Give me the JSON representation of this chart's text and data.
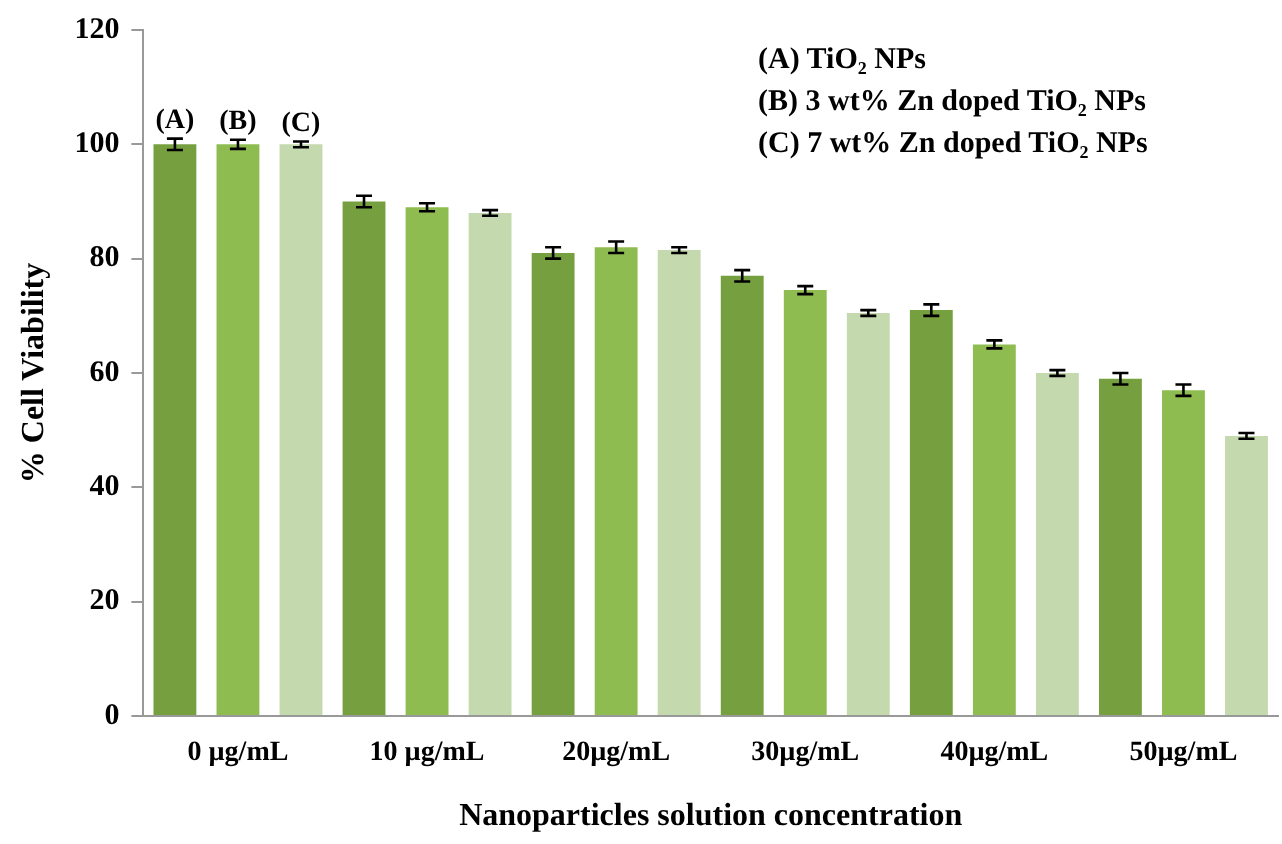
{
  "chart_data": {
    "type": "bar",
    "xlabel": "Nanoparticles solution concentration",
    "ylabel": "% Cell Viability",
    "categories": [
      "0 µg/mL",
      "10 µg/mL",
      "20µg/mL",
      "30µg/mL",
      "40µg/mL",
      "50µg/mL"
    ],
    "series": [
      {
        "name": "(A)",
        "color": "#76a040",
        "values": [
          100,
          90,
          81,
          77,
          71,
          59
        ],
        "errors": [
          1,
          1,
          1,
          1,
          1,
          1
        ]
      },
      {
        "name": "(B)",
        "color": "#8fbc50",
        "values": [
          100,
          89,
          82,
          74.5,
          65,
          57
        ],
        "errors": [
          0.8,
          0.7,
          1,
          0.7,
          0.7,
          1
        ]
      },
      {
        "name": "(C)",
        "color": "#c4d9ad",
        "values": [
          100,
          88,
          81.5,
          70.5,
          60,
          49
        ],
        "errors": [
          0.5,
          0.5,
          0.5,
          0.5,
          0.5,
          0.5
        ]
      }
    ],
    "ylim": [
      0,
      120
    ],
    "yticks": [
      0,
      20,
      40,
      60,
      80,
      100,
      120
    ],
    "grid": false,
    "annotations": [
      "(A) TiO₂ NPs",
      "(B) 3 wt% Zn doped TiO₂ NPs",
      "(C) 7 wt% Zn doped TiO₂ NPs"
    ]
  }
}
